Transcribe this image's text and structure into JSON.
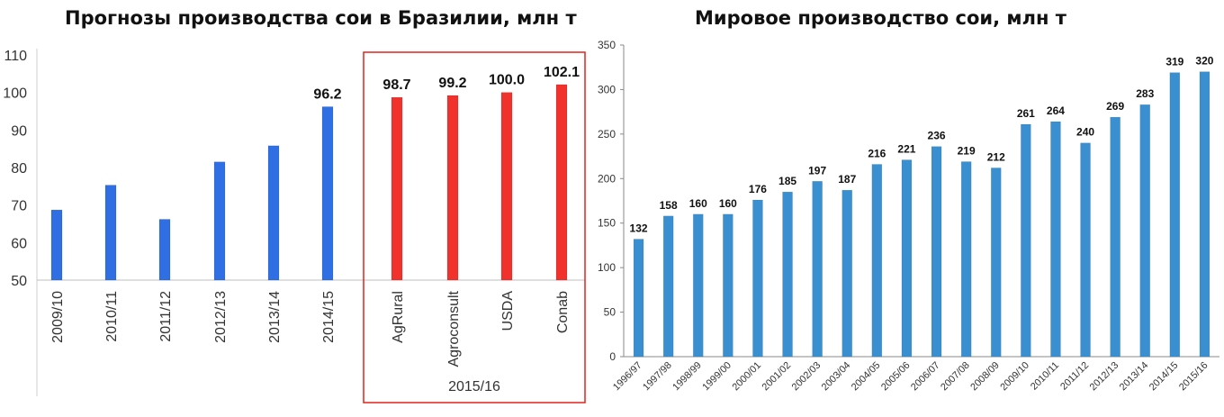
{
  "chart_data": [
    {
      "type": "bar",
      "title": "Прогнозы производства сои в Бразилии, млн т",
      "ylim": [
        50,
        110
      ],
      "yticks": [
        50,
        60,
        70,
        80,
        90,
        100,
        110
      ],
      "grid": false,
      "categories": [
        "2009/10",
        "2010/11",
        "2011/12",
        "2012/13",
        "2013/14",
        "2014/15",
        "AgRural",
        "Agroconsult",
        "USDA",
        "Conab"
      ],
      "group_label": "2015/16",
      "series": [
        {
          "values": [
            68.7,
            75.3,
            66.2,
            81.5,
            85.8,
            96.2,
            null,
            null,
            null,
            null
          ],
          "color": "#2f6fe3",
          "labels": [
            null,
            null,
            null,
            null,
            null,
            "96.2",
            null,
            null,
            null,
            null
          ]
        },
        {
          "values": [
            null,
            null,
            null,
            null,
            null,
            null,
            98.7,
            99.2,
            100.0,
            102.1
          ],
          "color": "#f0312c",
          "labels": [
            null,
            null,
            null,
            null,
            null,
            null,
            "98.7",
            "99.2",
            "100.0",
            "102.1"
          ]
        }
      ]
    },
    {
      "type": "bar",
      "title": "Мировое производство сои, млн т",
      "ylim": [
        0,
        350
      ],
      "yticks": [
        0,
        50,
        100,
        150,
        200,
        250,
        300,
        350
      ],
      "grid": false,
      "categories": [
        "1996/97",
        "1997/98",
        "1998/99",
        "1999/00",
        "2000/01",
        "2001/02",
        "2002/03",
        "2003/04",
        "2004/05",
        "2005/06",
        "2006/07",
        "2007/08",
        "2008/09",
        "2009/10",
        "2010/11",
        "2011/12",
        "2012/13",
        "2013/14",
        "2014/15",
        "2015/16"
      ],
      "series": [
        {
          "values": [
            132,
            158,
            160,
            160,
            176,
            185,
            197,
            187,
            216,
            221,
            236,
            219,
            212,
            261,
            264,
            240,
            269,
            283,
            319,
            320
          ],
          "color": "#3a8fd0"
        }
      ]
    }
  ]
}
